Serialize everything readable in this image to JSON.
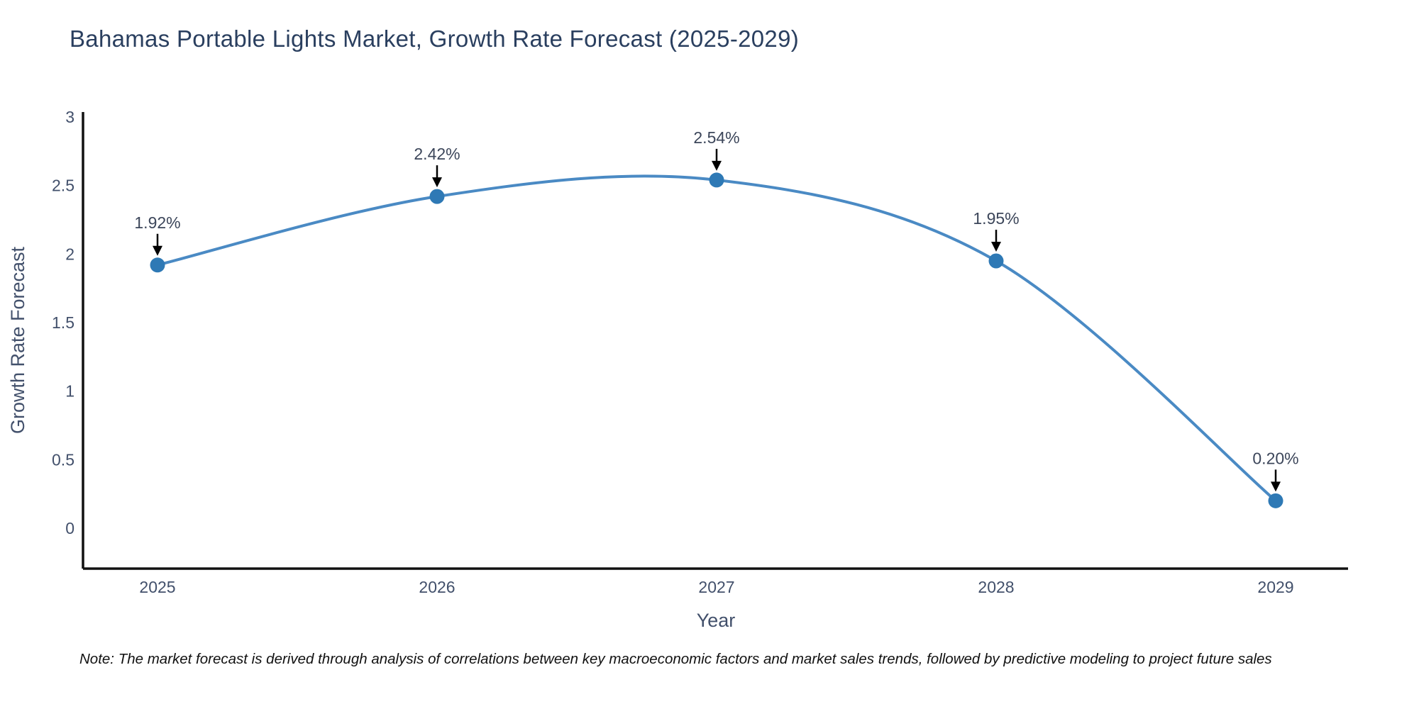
{
  "chart_data": {
    "type": "line",
    "title": "Bahamas Portable Lights Market, Growth Rate Forecast (2025-2029)",
    "xlabel": "Year",
    "ylabel": "Growth Rate Forecast",
    "categories": [
      "2025",
      "2026",
      "2027",
      "2028",
      "2029"
    ],
    "series": [
      {
        "name": "Growth Rate Forecast",
        "values": [
          1.92,
          2.42,
          2.54,
          1.95,
          0.2
        ]
      }
    ],
    "point_labels": [
      "1.92%",
      "2.42%",
      "2.54%",
      "1.95%",
      "0.20%"
    ],
    "yticks": [
      0,
      0.5,
      1,
      1.5,
      2,
      2.5,
      3
    ],
    "ytick_labels": [
      "0",
      "0.5",
      "1",
      "1.5",
      "2",
      "2.5",
      "3"
    ],
    "ylim": [
      -0.3,
      3.04
    ],
    "grid": false,
    "legend_position": "none",
    "line_shape": "spline",
    "note": "Note: The market forecast is derived through analysis of correlations between key macroeconomic factors and market sales trends, followed by predictive modeling to project future sales",
    "colors": {
      "line": "#4a8ac4",
      "marker": "#2e79b5",
      "axis_line": "#111111",
      "title_text": "#2a3f5f",
      "tick_text": "#42506b",
      "axis_title_text": "#42506b",
      "annotation_text": "#3c465a",
      "arrow": "#000000",
      "note_text": "#111111"
    }
  }
}
